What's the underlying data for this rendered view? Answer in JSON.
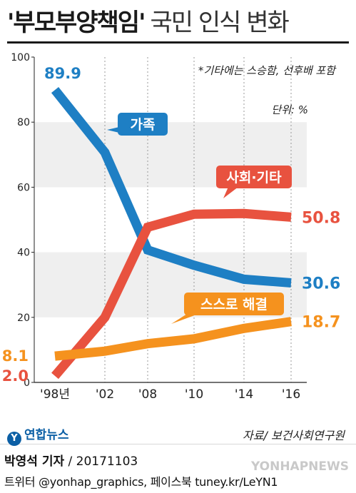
{
  "title": {
    "main": "'부모부양책임'",
    "sub": "국민 인식 변화"
  },
  "note": "*기타에는 스승함, 선후배 포함",
  "unit": "단위: %",
  "chart_data": {
    "type": "line",
    "title": "'부모부양책임' 국민 인식 변화",
    "categories": [
      "'98년",
      "'02",
      "'08",
      "'10",
      "'14",
      "'16"
    ],
    "ylim": [
      0,
      100
    ],
    "yticks": [
      "0",
      "20",
      "40",
      "60",
      "80",
      "100"
    ],
    "grid": "alternating horizontal bands",
    "series": [
      {
        "name": "가족",
        "values": [
          89.9,
          70.7,
          40.7,
          36.0,
          31.7,
          30.6
        ],
        "color": "#1e7fc4",
        "start_label": "89.9",
        "end_label": "30.6"
      },
      {
        "name": "사회·기타",
        "values": [
          2.0,
          20.0,
          47.7,
          51.7,
          51.9,
          50.8
        ],
        "color": "#e8523f",
        "start_label": "2.0",
        "end_label": "50.8"
      },
      {
        "name": "스스로 해결",
        "values": [
          8.1,
          9.6,
          11.9,
          13.4,
          16.6,
          18.7
        ],
        "color": "#f5921e",
        "start_label": "8.1",
        "end_label": "18.7"
      }
    ]
  },
  "source": "자료/ 보건사회연구원",
  "logo": {
    "mark": "Y",
    "text": "연합뉴스"
  },
  "byline": {
    "name": "박영석 기자",
    "date": "20171103"
  },
  "social": "트위터 @yonhap_graphics, 페이스북 tuney.kr/LeYN1",
  "watermark": "YONHAPNEWS"
}
